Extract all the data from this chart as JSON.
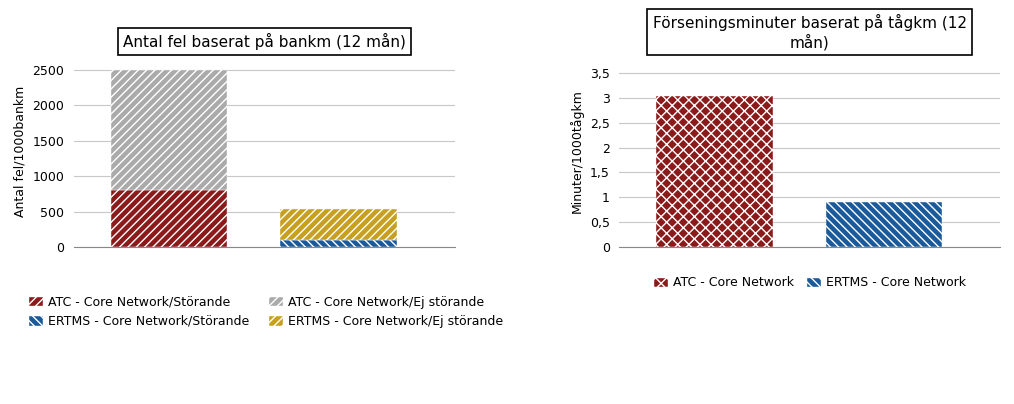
{
  "chart1": {
    "title": "Antal fel baserat på bankm (12 mån)",
    "ylabel": "Antal fel/1000bankm",
    "atc_storande": 800,
    "atc_ej_storande": 1700,
    "ertms_storande": 100,
    "ertms_ej_storande": 430,
    "ylim": 2700,
    "yticks": [
      0,
      500,
      1000,
      1500,
      2000,
      2500
    ],
    "ytick_labels": [
      "0",
      "500",
      "1000",
      "1500",
      "2000",
      "2500"
    ],
    "color_atc_storande": "#8B1A1A",
    "color_atc_ej": "#AAAAAA",
    "color_ertms_storande": "#1A5A9A",
    "color_ertms_ej": "#C8A020",
    "legend_labels": [
      "ATC - Core Network/Störande",
      "ATC - Core Network/Ej störande",
      "ERTMS - Core Network/Störande",
      "ERTMS - Core Network/Ej störande"
    ]
  },
  "chart2": {
    "title": "Förseningsminuter baserat på tågkm (12\nmån)",
    "ylabel": "Minuter/1000tågkm",
    "atc_value": 3.04,
    "ertms_value": 0.9,
    "ylim": 3.85,
    "yticks": [
      0,
      0.5,
      1.0,
      1.5,
      2.0,
      2.5,
      3.0,
      3.5
    ],
    "ytick_labels": [
      "0",
      "0,5",
      "1",
      "1,5",
      "2",
      "2,5",
      "3",
      "3,5"
    ],
    "color_atc": "#8B1A1A",
    "color_ertms": "#1A5A9A",
    "legend_labels": [
      "ATC - Core Network",
      "ERTMS - Core Network"
    ]
  },
  "bg_color": "#FFFFFF",
  "grid_color": "#C8C8C8",
  "title_fontsize": 11,
  "label_fontsize": 9,
  "tick_fontsize": 9,
  "legend_fontsize": 9
}
